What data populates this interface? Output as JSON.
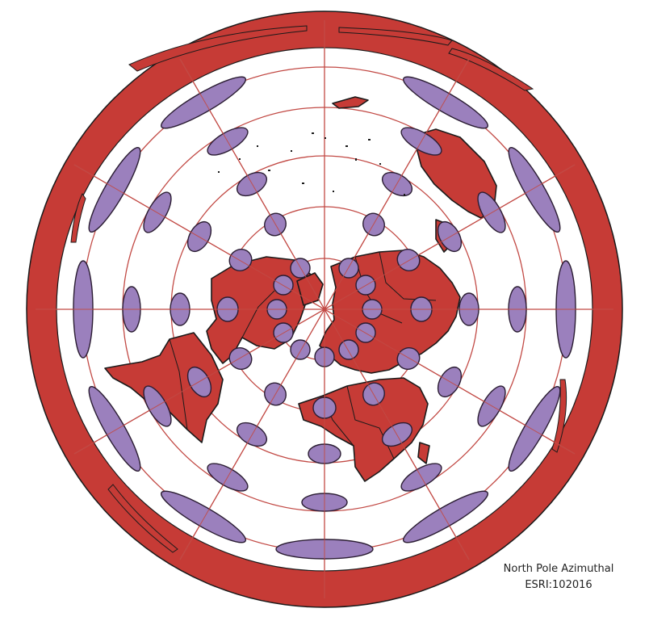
{
  "map": {
    "projection_name": "North Pole Azimuthal",
    "projection_code": "ESRI:102016",
    "colors": {
      "land": "#c63b36",
      "outline": "#1a1a1a",
      "ocean": "#ffffff",
      "graticule": "#c24a45",
      "indicatrix_fill": "#9b80bd",
      "indicatrix_stroke": "#2b1d33"
    },
    "features": [
      "graticule",
      "tissot-indicatrix",
      "country-borders",
      "land-masses"
    ]
  }
}
